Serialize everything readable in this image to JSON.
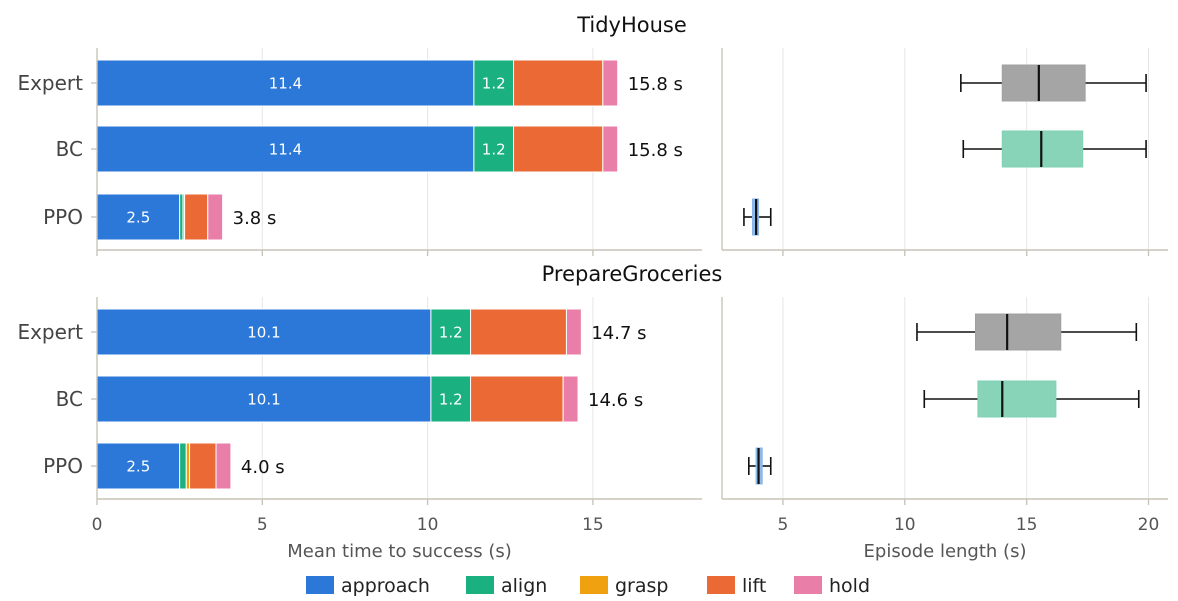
{
  "chart_data": [
    {
      "type": "bar",
      "orientation": "horizontal",
      "stacked": true,
      "title": "TidyHouse",
      "categories": [
        "Expert",
        "BC",
        "PPO"
      ],
      "series": [
        {
          "name": "approach",
          "color": "#2b78d8",
          "values": [
            11.4,
            11.4,
            2.5
          ]
        },
        {
          "name": "align",
          "color": "#1ab07f",
          "values": [
            1.2,
            1.2,
            0.1
          ]
        },
        {
          "name": "grasp",
          "color": "#f0a10f",
          "values": [
            0.0,
            0.0,
            0.05
          ]
        },
        {
          "name": "lift",
          "color": "#ea6935",
          "values": [
            2.7,
            2.7,
            0.7
          ]
        },
        {
          "name": "hold",
          "color": "#e97ea8",
          "values": [
            0.45,
            0.45,
            0.45
          ]
        }
      ],
      "segment_labels": [
        [
          "11.4",
          "1.2",
          "2.7"
        ],
        [
          "11.4",
          "1.2",
          "2.7"
        ],
        [
          "2.5"
        ]
      ],
      "totals": [
        "15.8 s",
        "15.8 s",
        "3.8 s"
      ],
      "xlim": [
        0,
        18.3
      ],
      "xticks": [
        0,
        5,
        10,
        15
      ],
      "grid": true
    },
    {
      "type": "box",
      "title": "",
      "categories": [
        "Expert",
        "BC",
        "PPO"
      ],
      "boxes": [
        {
          "category": "Expert",
          "whisker_low": 12.3,
          "q1": 14.0,
          "median": 15.5,
          "q3": 17.4,
          "whisker_high": 19.9,
          "color": "#a0a0a0"
        },
        {
          "category": "BC",
          "whisker_low": 12.4,
          "q1": 14.0,
          "median": 15.6,
          "q3": 17.3,
          "whisker_high": 19.9,
          "color": "#82d2b4"
        },
        {
          "category": "PPO",
          "whisker_low": 3.4,
          "q1": 3.75,
          "median": 3.9,
          "q3": 4.0,
          "whisker_high": 4.5,
          "color": "#8ab6e8"
        }
      ],
      "xlim": [
        2.5,
        20.8
      ],
      "xticks": [
        5,
        10,
        15,
        20
      ],
      "grid": true
    },
    {
      "type": "bar",
      "orientation": "horizontal",
      "stacked": true,
      "title": "PrepareGroceries",
      "categories": [
        "Expert",
        "BC",
        "PPO"
      ],
      "series": [
        {
          "name": "approach",
          "color": "#2b78d8",
          "values": [
            10.1,
            10.1,
            2.5
          ]
        },
        {
          "name": "align",
          "color": "#1ab07f",
          "values": [
            1.2,
            1.2,
            0.2
          ]
        },
        {
          "name": "grasp",
          "color": "#f0a10f",
          "values": [
            0.0,
            0.0,
            0.1
          ]
        },
        {
          "name": "lift",
          "color": "#ea6935",
          "values": [
            2.9,
            2.8,
            0.8
          ]
        },
        {
          "name": "hold",
          "color": "#e97ea8",
          "values": [
            0.45,
            0.45,
            0.45
          ]
        }
      ],
      "segment_labels": [
        [
          "10.1",
          "1.2",
          "2.9"
        ],
        [
          "10.1",
          "1.2",
          "2.8"
        ],
        [
          "2.5"
        ]
      ],
      "totals": [
        "14.7 s",
        "14.6 s",
        "4.0 s"
      ],
      "xlim": [
        0,
        18.3
      ],
      "xticks": [
        0,
        5,
        10,
        15
      ],
      "xticklabels": [
        "0",
        "5",
        "10",
        "15"
      ],
      "xlabel": "Mean time to success (s)",
      "grid": true
    },
    {
      "type": "box",
      "title": "",
      "categories": [
        "Expert",
        "BC",
        "PPO"
      ],
      "boxes": [
        {
          "category": "Expert",
          "whisker_low": 10.5,
          "q1": 12.9,
          "median": 14.2,
          "q3": 16.4,
          "whisker_high": 19.5,
          "color": "#a0a0a0"
        },
        {
          "category": "BC",
          "whisker_low": 10.8,
          "q1": 13.0,
          "median": 14.0,
          "q3": 16.2,
          "whisker_high": 19.6,
          "color": "#82d2b4"
        },
        {
          "category": "PPO",
          "whisker_low": 3.6,
          "q1": 3.9,
          "median": 4.0,
          "q3": 4.15,
          "whisker_high": 4.5,
          "color": "#8ab6e8"
        }
      ],
      "xlim": [
        2.5,
        20.8
      ],
      "xticks": [
        5,
        10,
        15,
        20
      ],
      "xticklabels": [
        "5",
        "10",
        "15",
        "20"
      ],
      "xlabel": "Episode length (s)",
      "grid": true
    }
  ],
  "legend": {
    "placement": "bottom-center",
    "items": [
      {
        "label": "approach",
        "color": "#2b78d8"
      },
      {
        "label": "align",
        "color": "#1ab07f"
      },
      {
        "label": "grasp",
        "color": "#f0a10f"
      },
      {
        "label": "lift",
        "color": "#ea6935"
      },
      {
        "label": "hold",
        "color": "#e97ea8"
      }
    ]
  },
  "style": {
    "axis_color": "#c8c4b8",
    "grid_color": "#e6e6e6",
    "whisker_color": "#111111"
  }
}
